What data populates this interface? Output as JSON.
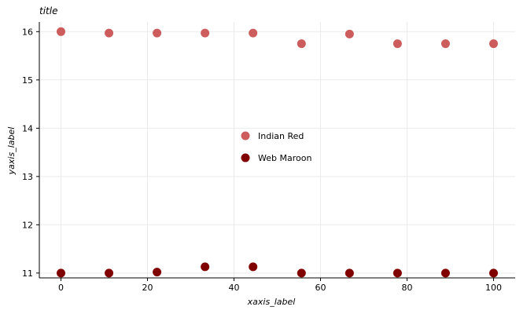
{
  "chart_data": {
    "type": "scatter",
    "title": "title",
    "xlabel": "xaxis_label",
    "ylabel": "yaxis_label",
    "xlim": [
      -5,
      105
    ],
    "ylim": [
      10.9,
      16.2
    ],
    "x_ticks": [
      0,
      20,
      40,
      60,
      80,
      100
    ],
    "y_ticks": [
      11,
      12,
      13,
      14,
      15,
      16
    ],
    "grid": true,
    "legend_position": "center-right",
    "series": [
      {
        "name": "Indian Red",
        "color": "#cd5c5c",
        "x": [
          0,
          11.1,
          22.2,
          33.3,
          44.4,
          55.6,
          66.7,
          77.8,
          88.9,
          100
        ],
        "y": [
          16.0,
          15.97,
          15.97,
          15.97,
          15.97,
          15.75,
          15.95,
          15.75,
          15.75,
          15.75
        ]
      },
      {
        "name": "Web Maroon",
        "color": "#800000",
        "x": [
          0,
          11.1,
          22.2,
          33.3,
          44.4,
          55.6,
          66.7,
          77.8,
          88.9,
          100
        ],
        "y": [
          11.0,
          11.0,
          11.02,
          11.13,
          11.13,
          11.0,
          11.0,
          11.0,
          11.0,
          11.0
        ]
      }
    ]
  }
}
